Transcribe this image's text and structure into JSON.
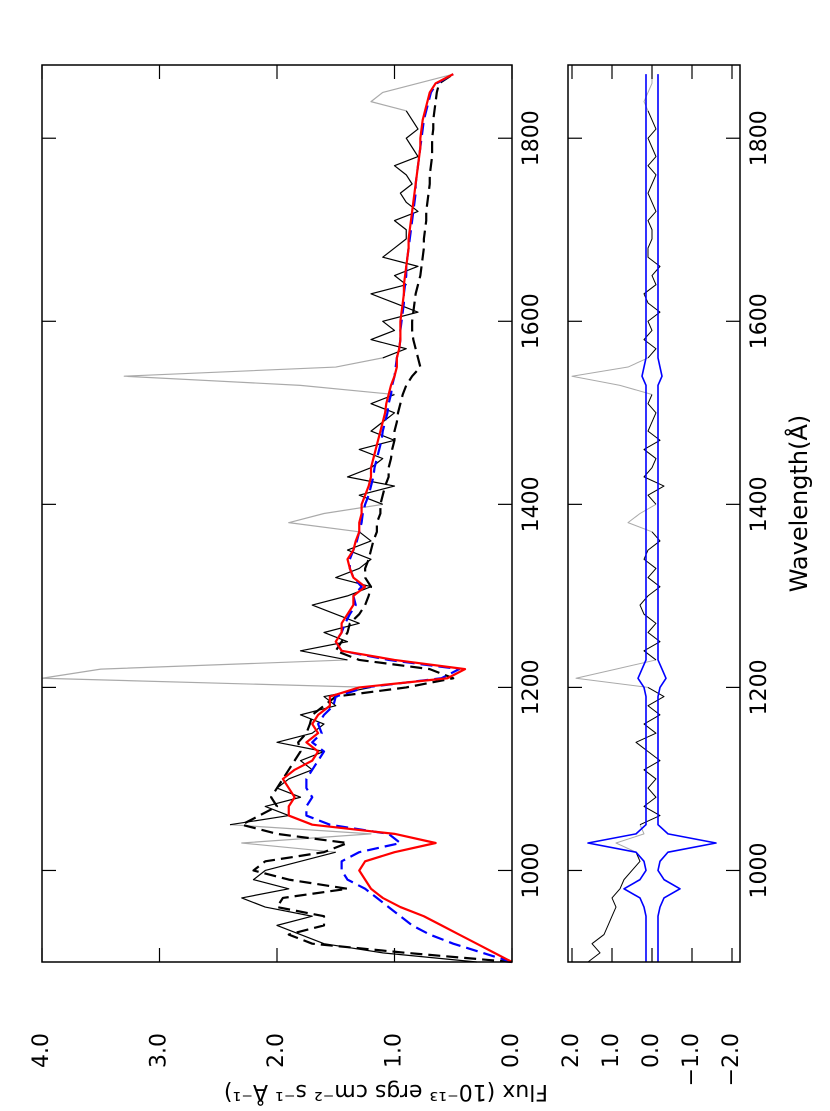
{
  "chart_data": [
    {
      "type": "line",
      "ylabel": "Flux (10⁻¹³ ergs cm⁻² s⁻¹ Å⁻¹)",
      "xlim": [
        900,
        1880
      ],
      "xticks": [
        1000,
        1200,
        1400,
        1600,
        1800
      ],
      "ylim": [
        0,
        4
      ],
      "yticks": [
        {
          "value": 0,
          "label": "0.0"
        },
        {
          "value": 1,
          "label": "1.0"
        },
        {
          "value": 2,
          "label": "2.0"
        },
        {
          "value": 3,
          "label": "3.0"
        },
        {
          "value": 4,
          "label": "4.0"
        }
      ],
      "x": [
        900,
        910,
        920,
        930,
        940,
        950,
        960,
        970,
        980,
        990,
        1000,
        1010,
        1020,
        1030,
        1040,
        1050,
        1060,
        1070,
        1080,
        1090,
        1100,
        1110,
        1120,
        1130,
        1140,
        1150,
        1160,
        1170,
        1180,
        1190,
        1200,
        1210,
        1220,
        1230,
        1240,
        1250,
        1260,
        1270,
        1280,
        1290,
        1300,
        1310,
        1320,
        1330,
        1340,
        1350,
        1360,
        1370,
        1380,
        1390,
        1400,
        1410,
        1420,
        1430,
        1440,
        1450,
        1460,
        1470,
        1480,
        1490,
        1500,
        1510,
        1520,
        1530,
        1540,
        1550,
        1560,
        1570,
        1580,
        1590,
        1600,
        1610,
        1620,
        1630,
        1640,
        1650,
        1660,
        1670,
        1680,
        1690,
        1700,
        1710,
        1720,
        1730,
        1740,
        1750,
        1760,
        1770,
        1780,
        1790,
        1800,
        1810,
        1820,
        1830,
        1840,
        1850,
        1860,
        1870
      ],
      "series": [
        {
          "color": "#aaaaaa",
          "values": [
            null,
            null,
            null,
            null,
            null,
            null,
            null,
            null,
            null,
            null,
            null,
            null,
            1.5,
            2.3,
            1.2,
            2.4,
            null,
            null,
            null,
            null,
            null,
            null,
            null,
            null,
            null,
            null,
            null,
            null,
            null,
            null,
            1.2,
            4.0,
            3.5,
            1.4,
            null,
            null,
            null,
            null,
            null,
            null,
            null,
            null,
            null,
            null,
            null,
            null,
            null,
            1.3,
            1.9,
            1.6,
            1.1,
            null,
            null,
            null,
            null,
            null,
            null,
            null,
            null,
            null,
            null,
            null,
            1.0,
            1.8,
            3.3,
            1.5,
            1.1,
            null,
            null,
            null,
            null,
            null,
            null,
            null,
            null,
            null,
            null,
            null,
            null,
            null,
            null,
            null,
            null,
            null,
            null,
            null,
            null,
            null,
            null,
            null,
            null,
            null,
            null,
            0.9,
            1.2,
            1.1,
            0.8,
            0.5
          ]
        },
        {
          "color": "#000000",
          "values": [
            0.3,
            1.1,
            1.6,
            1.8,
            2.0,
            1.7,
            2.1,
            2.3,
            1.9,
            2.2,
            2.1,
            1.8,
            1.5,
            null,
            null,
            2.4,
            1.9,
            2.1,
            1.8,
            2.0,
            1.9,
            1.7,
            1.8,
            1.6,
            2.0,
            1.7,
            1.6,
            1.8,
            1.5,
            1.6,
            1.2,
            null,
            null,
            1.4,
            1.8,
            1.4,
            1.6,
            1.3,
            1.5,
            1.7,
            1.4,
            1.2,
            1.5,
            1.3,
            1.2,
            1.4,
            1.2,
            1.3,
            null,
            null,
            1.1,
            1.3,
            1.0,
            1.4,
            1.2,
            1.1,
            1.3,
            1.0,
            1.2,
            1.1,
            1.0,
            1.2,
            1.0,
            null,
            null,
            null,
            1.1,
            0.9,
            1.2,
            1.0,
            1.1,
            0.8,
            1.0,
            1.2,
            0.9,
            1.0,
            0.8,
            1.1,
            1.0,
            0.9,
            0.9,
            1.0,
            0.8,
            0.9,
            0.95,
            0.85,
            0.9,
            1.0,
            0.8,
            0.85,
            0.9,
            0.8,
            0.85,
            0.9,
            null,
            null,
            null,
            null
          ]
        },
        {
          "color": "#000000",
          "dash": true,
          "values": [
            0.0,
            0.9,
            1.7,
            1.9,
            1.6,
            1.6,
            2.0,
            1.95,
            1.4,
            1.9,
            2.2,
            2.1,
            1.6,
            1.4,
            2.0,
            2.3,
            2.15,
            2.0,
            2.05,
            2.0,
            1.95,
            1.9,
            1.85,
            1.8,
            1.82,
            1.75,
            1.72,
            1.7,
            1.6,
            1.5,
            0.9,
            0.5,
            0.7,
            1.3,
            1.5,
            1.45,
            1.4,
            1.38,
            1.3,
            1.25,
            1.22,
            1.2,
            1.25,
            1.25,
            1.22,
            1.2,
            1.18,
            1.15,
            1.15,
            1.12,
            1.12,
            1.1,
            1.08,
            1.05,
            1.05,
            1.03,
            1.02,
            1.0,
            1.0,
            0.98,
            0.97,
            0.95,
            0.93,
            0.9,
            0.85,
            0.78,
            0.8,
            0.82,
            0.84,
            0.85,
            0.85,
            0.84,
            0.83,
            0.82,
            0.8,
            0.78,
            0.77,
            0.76,
            0.75,
            0.75,
            0.74,
            0.73,
            0.73,
            0.72,
            0.71,
            0.7,
            0.7,
            0.69,
            0.68,
            0.68,
            0.68,
            0.67,
            0.67,
            0.66,
            0.65,
            0.64,
            0.62,
            0.5
          ]
        },
        {
          "color": "#0000ff",
          "dash": true,
          "values": [
            0.0,
            0.25,
            0.5,
            0.7,
            0.85,
            0.95,
            1.05,
            1.15,
            1.25,
            1.4,
            1.45,
            1.45,
            1.3,
            0.95,
            1.05,
            1.55,
            1.75,
            1.75,
            1.7,
            1.75,
            1.75,
            1.7,
            1.65,
            1.6,
            1.7,
            1.62,
            1.65,
            1.6,
            1.52,
            1.5,
            1.25,
            0.6,
            0.45,
            1.05,
            1.45,
            1.5,
            1.45,
            1.42,
            1.38,
            1.33,
            1.35,
            1.28,
            1.35,
            1.38,
            1.38,
            1.35,
            1.32,
            1.3,
            1.28,
            1.27,
            1.25,
            1.22,
            1.2,
            1.18,
            1.17,
            1.15,
            1.13,
            1.11,
            1.1,
            1.08,
            1.06,
            1.05,
            1.03,
            1.02,
            1.0,
            0.99,
            0.98,
            0.96,
            0.95,
            0.95,
            0.94,
            0.93,
            0.92,
            0.92,
            0.91,
            0.9,
            0.9,
            0.89,
            0.88,
            0.87,
            0.86,
            0.85,
            0.84,
            0.83,
            0.82,
            0.82,
            0.81,
            0.8,
            0.79,
            0.78,
            0.77,
            0.76,
            0.75,
            0.73,
            0.71,
            0.69,
            0.64,
            0.5
          ]
        },
        {
          "color": "#ff0000",
          "values": [
            0.0,
            0.15,
            0.3,
            0.45,
            0.6,
            0.75,
            0.95,
            1.1,
            1.2,
            1.25,
            1.3,
            1.25,
            1.0,
            0.65,
            1.0,
            1.7,
            1.9,
            1.9,
            1.85,
            1.9,
            1.95,
            1.85,
            1.7,
            1.65,
            1.75,
            1.65,
            1.7,
            1.65,
            1.55,
            1.55,
            1.3,
            0.55,
            0.4,
            1.0,
            1.45,
            1.5,
            1.45,
            1.45,
            1.4,
            1.35,
            1.35,
            1.25,
            1.35,
            1.38,
            1.4,
            1.35,
            1.33,
            1.3,
            1.3,
            1.28,
            1.28,
            1.25,
            1.22,
            1.2,
            1.2,
            1.18,
            1.16,
            1.14,
            1.12,
            1.1,
            1.08,
            1.07,
            1.05,
            1.03,
            1.0,
            0.98,
            0.98,
            0.96,
            0.95,
            0.95,
            0.95,
            0.94,
            0.93,
            0.92,
            0.92,
            0.91,
            0.9,
            0.89,
            0.88,
            0.88,
            0.87,
            0.86,
            0.85,
            0.84,
            0.83,
            0.82,
            0.81,
            0.8,
            0.79,
            0.78,
            0.78,
            0.77,
            0.76,
            0.74,
            0.72,
            0.7,
            0.65,
            0.5
          ]
        }
      ]
    },
    {
      "type": "line",
      "xlabel": "Wavelength(Å)",
      "xlim": [
        900,
        1880
      ],
      "xticks": [
        1000,
        1200,
        1400,
        1600,
        1800
      ],
      "ylim": [
        -2.2,
        2.1
      ],
      "yticks": [
        {
          "value": -2,
          "label": "−2.0"
        },
        {
          "value": -1,
          "label": "−1.0"
        },
        {
          "value": 0,
          "label": "0.0"
        },
        {
          "value": 1,
          "label": "1.0"
        },
        {
          "value": 2,
          "label": "2.0"
        }
      ],
      "x": [
        900,
        910,
        920,
        930,
        940,
        950,
        960,
        970,
        980,
        990,
        1000,
        1010,
        1020,
        1030,
        1040,
        1050,
        1060,
        1070,
        1080,
        1090,
        1100,
        1110,
        1120,
        1130,
        1140,
        1150,
        1160,
        1170,
        1180,
        1190,
        1200,
        1210,
        1220,
        1230,
        1240,
        1250,
        1260,
        1270,
        1280,
        1290,
        1300,
        1310,
        1320,
        1330,
        1340,
        1350,
        1360,
        1370,
        1380,
        1390,
        1400,
        1410,
        1420,
        1430,
        1440,
        1450,
        1460,
        1470,
        1480,
        1490,
        1500,
        1510,
        1520,
        1530,
        1540,
        1550,
        1560,
        1570,
        1580,
        1590,
        1600,
        1610,
        1620,
        1630,
        1640,
        1650,
        1660,
        1670,
        1680,
        1690,
        1700,
        1710,
        1720,
        1730,
        1740,
        1750,
        1760,
        1770,
        1780,
        1790,
        1800,
        1810,
        1820,
        1830,
        1840,
        1850,
        1860,
        1870
      ],
      "series": [
        {
          "color": "#aaaaaa",
          "values": [
            null,
            null,
            null,
            null,
            null,
            null,
            null,
            null,
            null,
            null,
            null,
            null,
            0.4,
            0.9,
            0.2,
            0.3,
            null,
            null,
            null,
            null,
            null,
            null,
            null,
            null,
            null,
            null,
            null,
            null,
            null,
            null,
            0.1,
            1.9,
            0.9,
            -0.1,
            null,
            null,
            null,
            null,
            null,
            null,
            null,
            null,
            null,
            null,
            null,
            null,
            null,
            0.0,
            0.6,
            0.3,
            -0.1,
            null,
            null,
            null,
            null,
            null,
            null,
            null,
            null,
            null,
            null,
            null,
            0.0,
            0.8,
            2.0,
            0.6,
            0.1,
            null,
            null,
            null,
            null,
            null,
            null,
            null,
            null,
            null,
            null,
            null,
            null,
            null,
            null,
            null,
            null,
            null,
            null,
            null,
            null,
            null,
            null,
            null,
            null,
            null,
            null,
            0.1,
            0.2,
            0.1,
            0.0,
            0.0
          ]
        },
        {
          "color": "#000000",
          "values": [
            1.6,
            1.3,
            1.5,
            1.2,
            1.1,
            1.0,
            0.9,
            1.0,
            0.8,
            0.7,
            0.5,
            0.3,
            0.4,
            null,
            null,
            0.3,
            -0.2,
            0.2,
            -0.1,
            0.1,
            -0.1,
            0.2,
            -0.2,
            0.1,
            0.4,
            -0.1,
            0.2,
            -0.2,
            0.1,
            -0.3,
            0.1,
            null,
            null,
            -0.1,
            0.2,
            -0.2,
            0.1,
            -0.1,
            0.2,
            0.3,
            0.1,
            -0.2,
            0.1,
            -0.1,
            0.2,
            0.1,
            -0.2,
            0.0,
            null,
            null,
            -0.1,
            0.1,
            -0.3,
            0.2,
            0.0,
            -0.1,
            0.2,
            -0.2,
            0.1,
            0.0,
            -0.1,
            0.1,
            0.0,
            null,
            null,
            null,
            0.1,
            -0.1,
            0.2,
            0.0,
            0.1,
            -0.2,
            0.1,
            0.2,
            -0.1,
            0.0,
            -0.2,
            0.1,
            0.1,
            0.0,
            0.0,
            0.1,
            -0.1,
            0.0,
            0.1,
            0.0,
            -0.1,
            0.1,
            -0.1,
            0.0,
            0.1,
            -0.1,
            0.0,
            0.1,
            null,
            null,
            null,
            null
          ]
        },
        {
          "color": "#0000ff",
          "envelope": true,
          "values": [
            0.15,
            0.15,
            0.15,
            0.15,
            0.15,
            0.15,
            0.2,
            0.3,
            0.7,
            0.3,
            0.15,
            0.2,
            0.4,
            1.6,
            0.4,
            0.15,
            0.15,
            0.15,
            0.15,
            0.15,
            0.15,
            0.15,
            0.15,
            0.15,
            0.15,
            0.15,
            0.15,
            0.15,
            0.15,
            0.15,
            0.2,
            0.35,
            0.25,
            0.15,
            0.15,
            0.15,
            0.15,
            0.15,
            0.15,
            0.15,
            0.15,
            0.15,
            0.15,
            0.15,
            0.15,
            0.15,
            0.15,
            0.15,
            0.15,
            0.15,
            0.15,
            0.15,
            0.15,
            0.15,
            0.15,
            0.15,
            0.15,
            0.15,
            0.15,
            0.15,
            0.15,
            0.15,
            0.15,
            0.15,
            0.25,
            0.2,
            0.15,
            0.15,
            0.15,
            0.15,
            0.15,
            0.15,
            0.15,
            0.15,
            0.15,
            0.15,
            0.15,
            0.15,
            0.15,
            0.15,
            0.15,
            0.15,
            0.15,
            0.15,
            0.15,
            0.15,
            0.15,
            0.15,
            0.15,
            0.15,
            0.15,
            0.15,
            0.15,
            0.15,
            0.15,
            0.15,
            0.15,
            0.15
          ]
        }
      ]
    }
  ]
}
